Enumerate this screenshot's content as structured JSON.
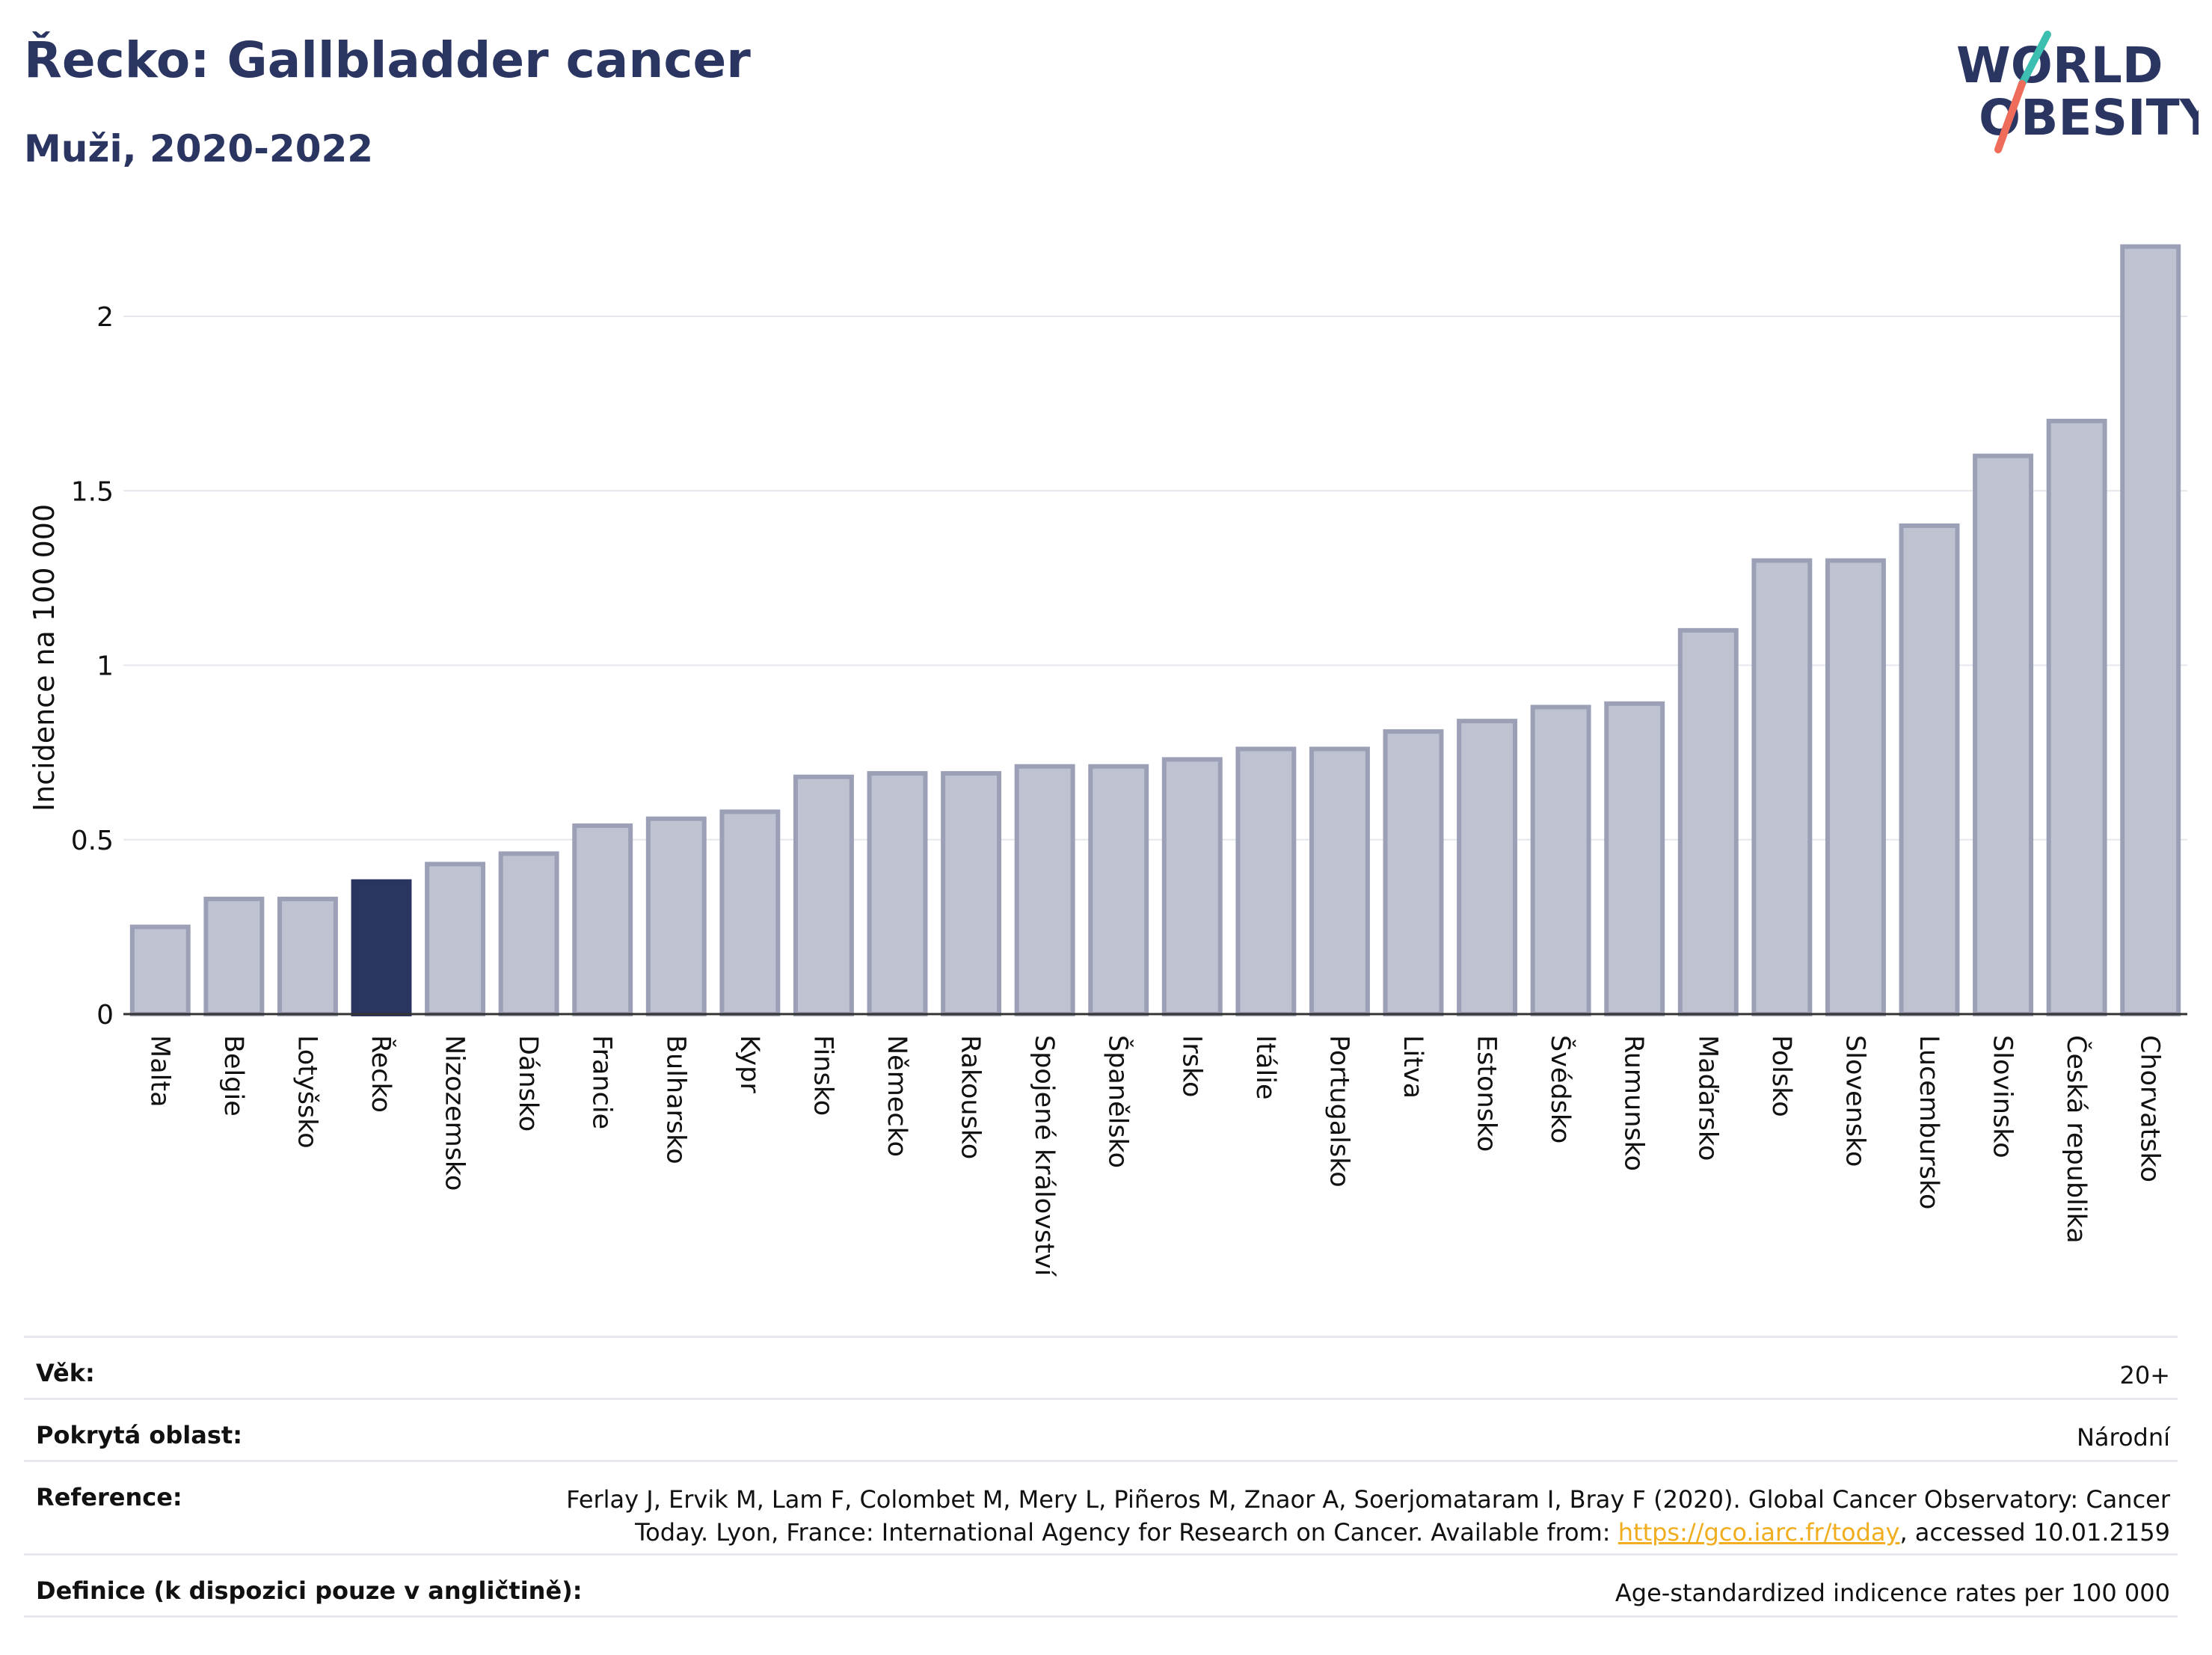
{
  "header": {
    "title": "Řecko: Gallbladder cancer",
    "subtitle": "Muži, 2020-2022"
  },
  "logo": {
    "line1": "WORLD",
    "line2": "OBESITY"
  },
  "colors": {
    "bar": "#bfc2d0",
    "bar_border": "#9ba0b6",
    "highlight": "#2b3561",
    "grid": "#e5e7ee",
    "axis": "#333333"
  },
  "chart_data": {
    "type": "bar",
    "title": "Řecko: Gallbladder cancer",
    "subtitle": "Muži, 2020-2022",
    "xlabel": "",
    "ylabel": "Incidence na 100 000",
    "ylim": [
      0,
      2.3
    ],
    "yticks": [
      0,
      0.5,
      1,
      1.5,
      2
    ],
    "ytick_labels": [
      "0",
      "0.5",
      "1",
      "1.5",
      "2"
    ],
    "grid": true,
    "highlight": "Řecko",
    "categories": [
      "Malta",
      "Belgie",
      "Lotyšsko",
      "Řecko",
      "Nizozemsko",
      "Dánsko",
      "Francie",
      "Bulharsko",
      "Kypr",
      "Finsko",
      "Německo",
      "Rakousko",
      "Spojené království",
      "Španělsko",
      "Irsko",
      "Itálie",
      "Portugalsko",
      "Litva",
      "Estonsko",
      "Švédsko",
      "Rumunsko",
      "Maďarsko",
      "Polsko",
      "Slovensko",
      "Lucembursko",
      "Slovinsko",
      "Česká republika",
      "Chorvatsko"
    ],
    "values": [
      0.25,
      0.33,
      0.33,
      0.38,
      0.43,
      0.46,
      0.54,
      0.56,
      0.58,
      0.68,
      0.69,
      0.69,
      0.71,
      0.71,
      0.73,
      0.76,
      0.76,
      0.81,
      0.84,
      0.88,
      0.89,
      1.1,
      1.3,
      1.3,
      1.4,
      1.6,
      1.7,
      2.2
    ]
  },
  "info": {
    "age_label": "Věk:",
    "age_value": "20+",
    "area_label": "Pokrytá oblast:",
    "area_value": "Národní",
    "ref_label": "Reference:",
    "ref_text_1": "Ferlay J, Ervik M, Lam F, Colombet M, Mery L, Piñeros M, Znaor A, Soerjomataram I, Bray F (2020). Global Cancer Observatory: Cancer Today. Lyon, France: International Agency for Research on Cancer. Available from: ",
    "ref_link": "https://gco.iarc.fr/today",
    "ref_text_2": ", accessed 10.01.2159",
    "def_label": "Definice (k dispozici pouze v angličtině):",
    "def_value": "Age-standardized indicence rates per 100 000"
  }
}
